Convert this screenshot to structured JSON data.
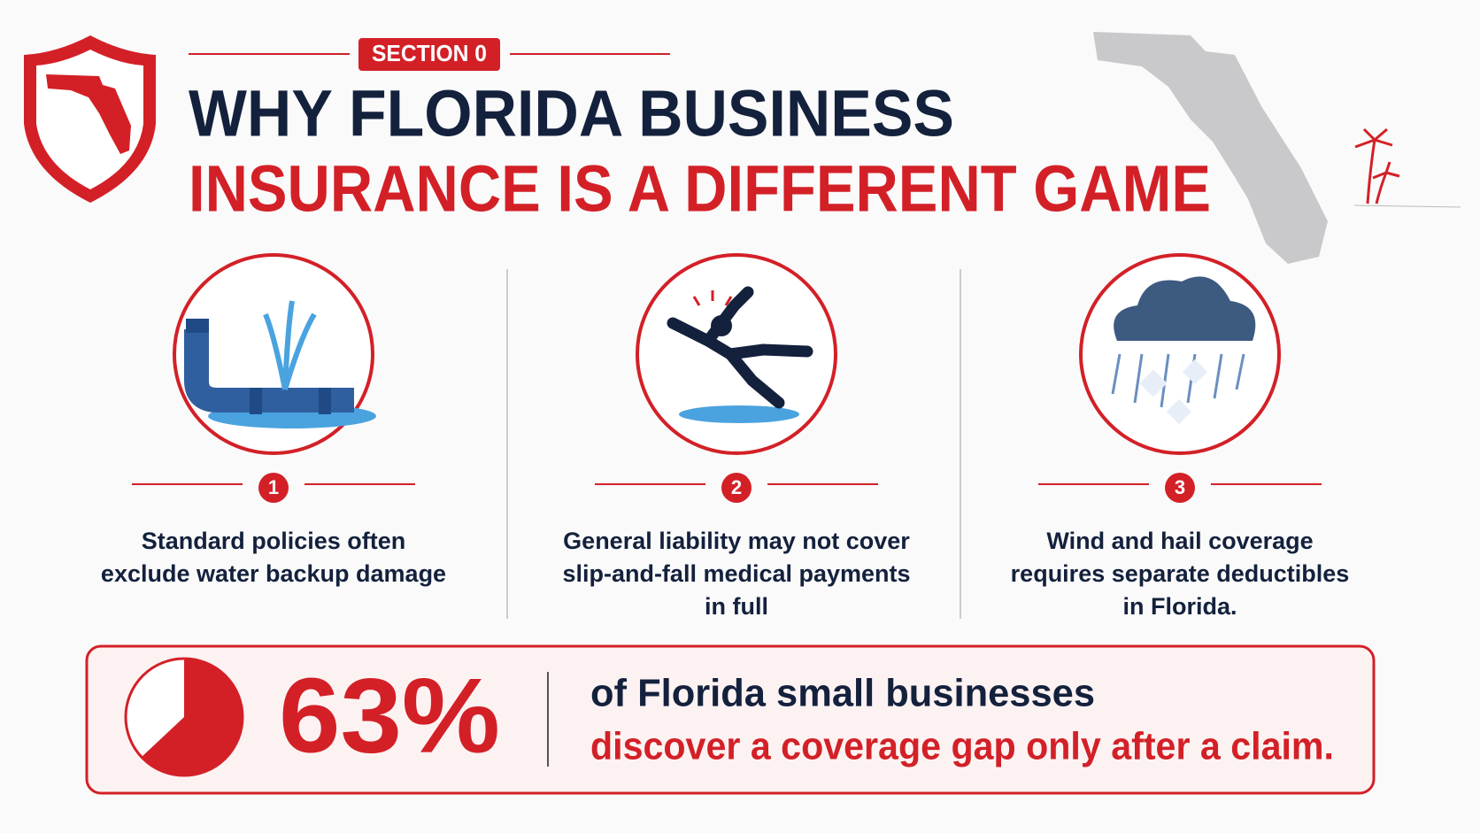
{
  "header": {
    "section_label": "SECTION 0",
    "title_line1": "WHY FLORIDA BUSINESS",
    "title_line2": "INSURANCE IS A DIFFERENT GAME"
  },
  "items": [
    {
      "number": "1",
      "lines": [
        "Standard policies often",
        "exclude water backup damage"
      ]
    },
    {
      "number": "2",
      "lines": [
        "General liability may not cover",
        "slip-and-fall medical payments",
        "in full"
      ]
    },
    {
      "number": "3",
      "lines": [
        "Wind and hail coverage",
        "requires separate deductibles",
        "in Florida."
      ]
    }
  ],
  "stat": {
    "value": 63,
    "value_label": "63%",
    "line1": "of Florida small businesses",
    "line2": "discover a coverage gap only after a claim."
  }
}
